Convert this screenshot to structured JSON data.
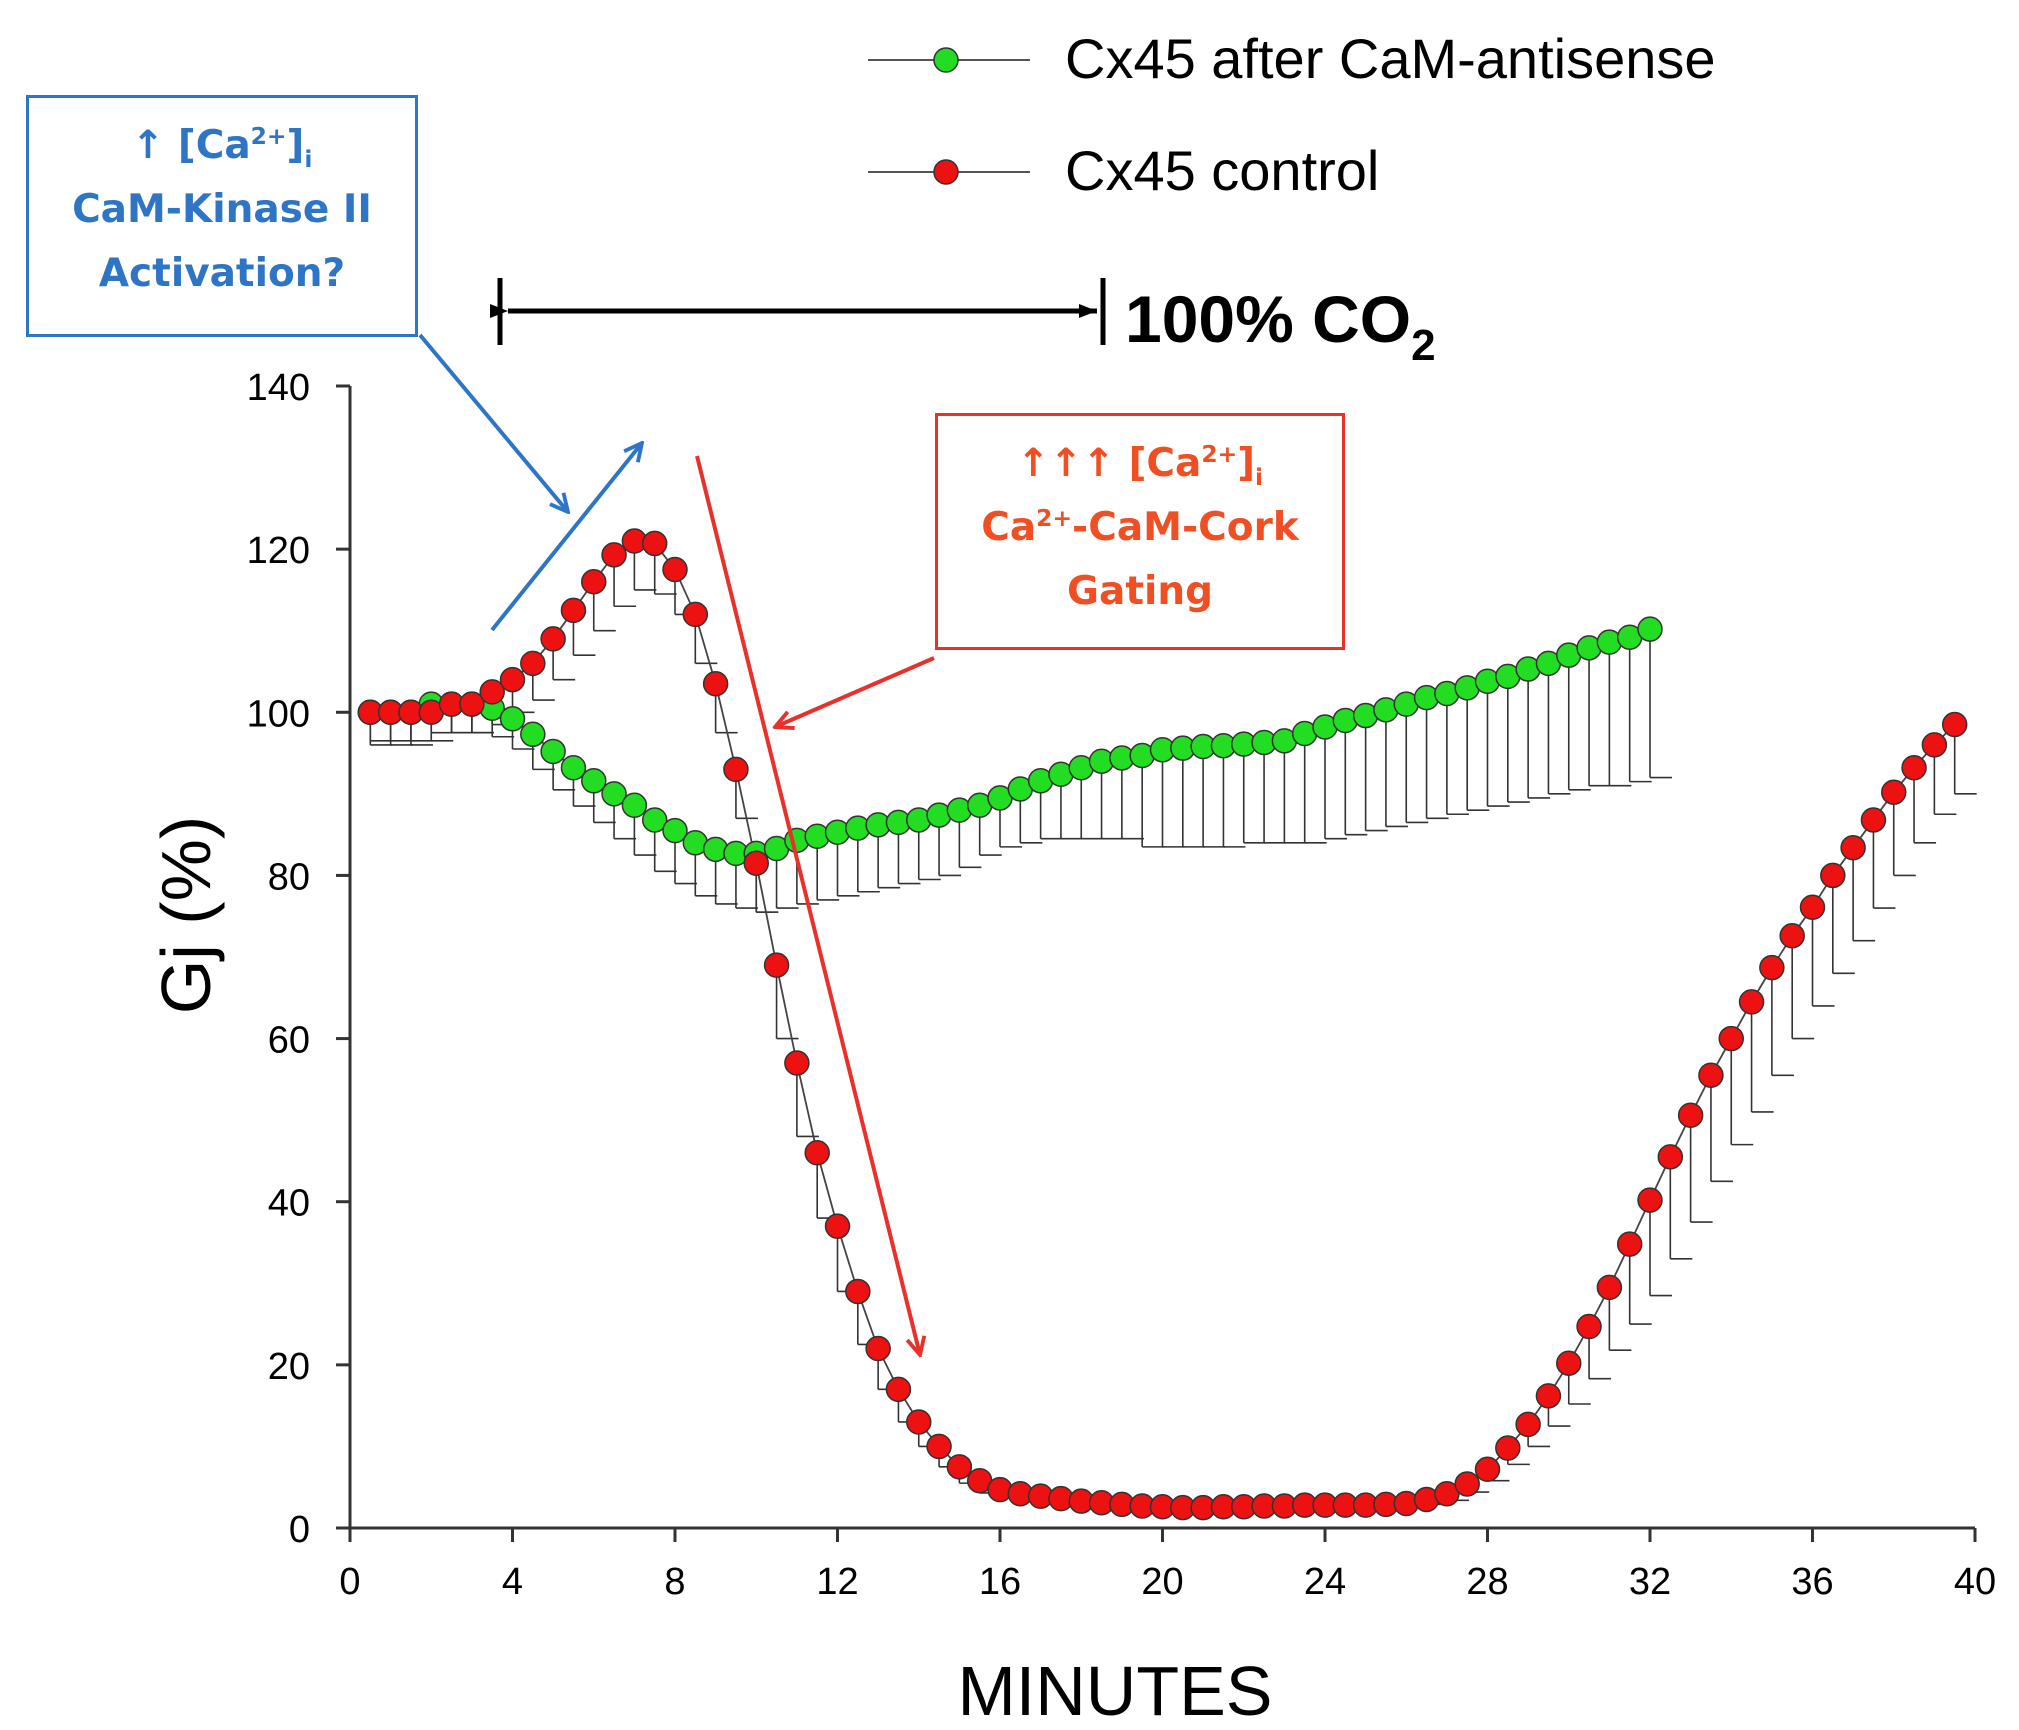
{
  "chart_data": {
    "type": "line",
    "title": "",
    "xlabel": "MINUTES",
    "ylabel": "Gj (%)",
    "xlim": [
      0,
      40
    ],
    "ylim": [
      0,
      140
    ],
    "xticks": [
      0,
      4,
      8,
      12,
      16,
      20,
      24,
      28,
      32,
      36,
      40
    ],
    "yticks": [
      0,
      20,
      40,
      60,
      80,
      100,
      120,
      140
    ],
    "grid": false,
    "legend_position": "top-right",
    "series": [
      {
        "name": "Cx45 after CaM-antisense",
        "color": "#22dd22",
        "x": [
          0.5,
          1,
          1.5,
          2,
          2.5,
          3,
          3.5,
          4,
          4.5,
          5,
          5.5,
          6,
          6.5,
          7,
          7.5,
          8,
          8.5,
          9,
          9.5,
          10,
          10.5,
          11,
          11.5,
          12,
          12.5,
          13,
          13.5,
          14,
          14.5,
          15,
          15.5,
          16,
          16.5,
          17,
          17.5,
          18,
          18.5,
          19,
          19.5,
          20,
          20.5,
          21,
          21.5,
          22,
          22.5,
          23,
          23.5,
          24,
          24.5,
          25,
          25.5,
          26,
          26.5,
          27,
          27.5,
          28,
          28.5,
          29,
          29.5,
          30,
          30.5,
          31,
          31.5,
          32
        ],
        "y": [
          100,
          100,
          100,
          101,
          101,
          101,
          100.5,
          99.2,
          97.3,
          95.2,
          93.2,
          91.6,
          90,
          88.6,
          86.8,
          85.5,
          84,
          83.2,
          82.7,
          82.7,
          83.3,
          84.3,
          84.8,
          85.3,
          85.8,
          86.2,
          86.5,
          86.8,
          87.4,
          88,
          88.6,
          89.5,
          90.6,
          91.6,
          92.4,
          93.2,
          94,
          94.4,
          94.7,
          95.4,
          95.6,
          95.8,
          95.9,
          96.1,
          96.3,
          96.5,
          97.4,
          98.2,
          99,
          99.6,
          100.3,
          101,
          101.8,
          102.3,
          103,
          103.8,
          104.4,
          105.3,
          106,
          107,
          107.9,
          108.6,
          109.2,
          110.2
        ],
        "error_lower": [
          96.5,
          96.5,
          96.5,
          97.5,
          97.5,
          97.5,
          97,
          95.5,
          93,
          90.5,
          88.5,
          86.5,
          84.5,
          82.5,
          80.5,
          79,
          77.5,
          76.5,
          76,
          75.5,
          76,
          76.5,
          77,
          77.5,
          78,
          78.5,
          79,
          79.5,
          80,
          81,
          82.5,
          83.5,
          84,
          84.5,
          84.5,
          84.5,
          84.5,
          84.5,
          83.5,
          83.5,
          83.5,
          83.5,
          83.5,
          84,
          84,
          84,
          84,
          84.5,
          85,
          85.5,
          86,
          86.5,
          87,
          87.5,
          88,
          88.5,
          89,
          89.5,
          90,
          90.5,
          91,
          91,
          91.5,
          92
        ]
      },
      {
        "name": "Cx45 control",
        "color": "#ee1111",
        "x": [
          0.5,
          1,
          1.5,
          2,
          2.5,
          3,
          3.5,
          4,
          4.5,
          5,
          5.5,
          6,
          6.5,
          7,
          7.5,
          8,
          8.5,
          9,
          9.5,
          10,
          10.5,
          11,
          11.5,
          12,
          12.5,
          13,
          13.5,
          14,
          14.5,
          15,
          15.5,
          16,
          16.5,
          17,
          17.5,
          18,
          18.5,
          19,
          19.5,
          20,
          20.5,
          21,
          21.5,
          22,
          22.5,
          23,
          23.5,
          24,
          24.5,
          25,
          25.5,
          26,
          26.5,
          27,
          27.5,
          28,
          28.5,
          29,
          29.5,
          30,
          30.5,
          31,
          31.5,
          32,
          32.5,
          33,
          33.5,
          34,
          34.5,
          35,
          35.5,
          36,
          36.5,
          37,
          37.5,
          38,
          38.5,
          39,
          39.5
        ],
        "y": [
          100,
          100,
          100,
          100,
          101,
          101,
          102.5,
          104,
          106,
          109,
          112.5,
          116,
          119.3,
          121,
          120.7,
          117.5,
          112,
          103.5,
          93,
          81.5,
          69,
          57,
          46,
          37,
          29,
          22,
          17,
          13,
          10,
          7.5,
          5.8,
          4.7,
          4.2,
          3.9,
          3.6,
          3.3,
          3.1,
          2.9,
          2.7,
          2.6,
          2.5,
          2.5,
          2.6,
          2.6,
          2.7,
          2.7,
          2.8,
          2.8,
          2.8,
          2.8,
          2.9,
          3,
          3.5,
          4.2,
          5.4,
          7.2,
          9.8,
          12.7,
          16.2,
          20.2,
          24.7,
          29.5,
          34.8,
          40.2,
          45.5,
          50.6,
          55.5,
          60,
          64.5,
          68.7,
          72.6,
          76.1,
          80,
          83.4,
          86.8,
          90.2,
          93.2,
          96,
          98.5
        ],
        "error_lower": [
          96,
          96,
          96,
          96.5,
          97.5,
          97.5,
          98.5,
          100,
          101.5,
          104,
          107,
          110,
          113,
          115,
          114.5,
          112,
          106,
          97.5,
          87,
          75.5,
          60,
          48,
          38,
          29,
          22.5,
          17,
          13,
          10,
          7.5,
          5.5,
          4.3,
          3.7,
          3.3,
          3,
          2.8,
          2.6,
          2.4,
          2.3,
          2.2,
          2.1,
          2,
          2,
          2.1,
          2.1,
          2.2,
          2.2,
          2.3,
          2.3,
          2.3,
          2.3,
          2.4,
          2.5,
          2.9,
          3.4,
          4.4,
          5.8,
          7.8,
          10,
          12.5,
          15.2,
          18.3,
          21.8,
          25,
          28.5,
          33,
          37.5,
          42.5,
          47,
          51,
          55.5,
          60,
          64,
          68,
          72,
          76,
          80,
          84,
          87.5,
          90
        ]
      }
    ],
    "annotations": {
      "treatment_label": "100% CO",
      "treatment_sub": "2",
      "treatment_start": 3.7,
      "treatment_end": 18.5
    }
  },
  "boxes": {
    "blue": {
      "line1_arrow": "↑",
      "line1_ion": "[Ca",
      "line1_charge": "2+",
      "line1_close": "]",
      "line1_sub": "i",
      "line2": "CaM-Kinase II",
      "line3": "Activation?"
    },
    "red": {
      "line1_arrow": "↑↑↑",
      "line1_ion": "[Ca",
      "line1_charge": "2+",
      "line1_close": "]",
      "line1_sub": "i",
      "line2_ion": "Ca",
      "line2_charge": "2+",
      "line2_rest": "-CaM-Cork",
      "line3": "Gating"
    }
  },
  "colors": {
    "blue": "#2e75c6",
    "red_text": "#f04e23",
    "red_line": "#e8312a"
  }
}
